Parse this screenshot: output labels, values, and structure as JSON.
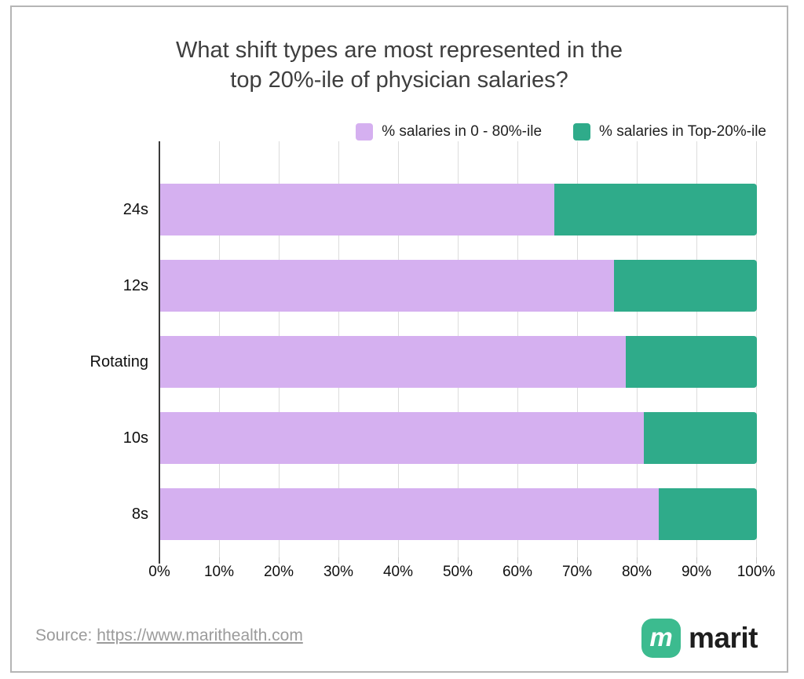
{
  "title": {
    "lines": [
      "What shift types are most represented in the",
      "top 20%-ile of physician salaries?"
    ]
  },
  "legend": {
    "items": [
      {
        "label": "% salaries in 0 - 80%-ile",
        "color": "#d5b0f0"
      },
      {
        "label": "% salaries in Top-20%-ile",
        "color": "#2fab8a"
      }
    ]
  },
  "chart_data": {
    "type": "bar",
    "orientation": "horizontal",
    "stacked": true,
    "title": "What shift types are most represented in the top 20%-ile of physician salaries?",
    "categories": [
      "24s",
      "12s",
      "Rotating",
      "10s",
      "8s"
    ],
    "series": [
      {
        "name": "% salaries in 0 - 80%-ile",
        "color": "#d5b0f0",
        "values": [
          66,
          76,
          78,
          81,
          83.5
        ]
      },
      {
        "name": "% salaries in Top-20%-ile",
        "color": "#2fab8a",
        "values": [
          34,
          24,
          22,
          19,
          16.5
        ]
      }
    ],
    "xlim": [
      0,
      100
    ],
    "x_ticks": [
      "0%",
      "10%",
      "20%",
      "30%",
      "40%",
      "50%",
      "60%",
      "70%",
      "80%",
      "90%",
      "100%"
    ],
    "grid": true,
    "legend_position": "top-right",
    "colors": {
      "gridline": "#dcdcdc",
      "axis": "#3a3a3a",
      "background": "#ffffff",
      "border": "#b5b5b5"
    }
  },
  "footer": {
    "source_prefix": "Source: ",
    "source_link": "https://www.marithealth.com",
    "logo_glyph": "m",
    "brand": "marit",
    "brand_color": "#3cbb8f"
  }
}
